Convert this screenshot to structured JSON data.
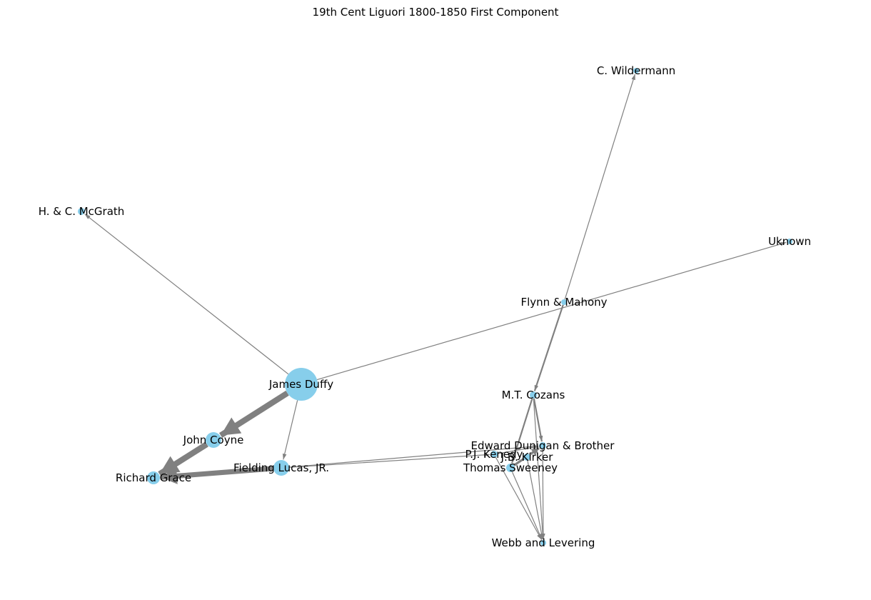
{
  "title": "19th Cent Liguori 1800-1850 First Component",
  "colors": {
    "node": "#87ceeb",
    "edge": "#808080",
    "label": "#000000",
    "background": "#ffffff"
  },
  "nodes": [
    {
      "id": "james-duffy",
      "label": "James Duffy"
    },
    {
      "id": "h-c-mcgrath",
      "label": "H. & C. McGrath"
    },
    {
      "id": "john-coyne",
      "label": "John Coyne"
    },
    {
      "id": "richard-grace",
      "label": "Richard Grace"
    },
    {
      "id": "fielding-lucas",
      "label": "Fielding Lucas, JR."
    },
    {
      "id": "c-wildermann",
      "label": "C. Wildermann"
    },
    {
      "id": "uknown",
      "label": "Uknown"
    },
    {
      "id": "flynn-mahony",
      "label": "Flynn & Mahony"
    },
    {
      "id": "mt-cozans",
      "label": "M.T. Cozans"
    },
    {
      "id": "edward-dunigan",
      "label": "Edward Dunigan & Brother"
    },
    {
      "id": "pj-kenedy",
      "label": "P.J. Kenedy"
    },
    {
      "id": "jb-kirker",
      "label": "J.B. Kirker"
    },
    {
      "id": "thomas-sweeney",
      "label": "Thomas Sweeney"
    },
    {
      "id": "webb-levering",
      "label": "Webb and Levering"
    }
  ],
  "edges": [
    {
      "source": "james-duffy",
      "target": "h-c-mcgrath",
      "weight": 1
    },
    {
      "source": "james-duffy",
      "target": "uknown",
      "weight": 1
    },
    {
      "source": "james-duffy",
      "target": "fielding-lucas",
      "weight": 1
    },
    {
      "source": "james-duffy",
      "target": "john-coyne",
      "weight": 8
    },
    {
      "source": "john-coyne",
      "target": "richard-grace",
      "weight": 8
    },
    {
      "source": "fielding-lucas",
      "target": "richard-grace",
      "weight": 7
    },
    {
      "source": "fielding-lucas",
      "target": "pj-kenedy",
      "weight": 1
    },
    {
      "source": "fielding-lucas",
      "target": "edward-dunigan",
      "weight": 1
    },
    {
      "source": "flynn-mahony",
      "target": "c-wildermann",
      "weight": 1
    },
    {
      "source": "flynn-mahony",
      "target": "mt-cozans",
      "weight": 2
    },
    {
      "source": "mt-cozans",
      "target": "edward-dunigan",
      "weight": 2
    },
    {
      "source": "mt-cozans",
      "target": "thomas-sweeney",
      "weight": 2
    },
    {
      "source": "thomas-sweeney",
      "target": "edward-dunigan",
      "weight": 3
    },
    {
      "source": "pj-kenedy",
      "target": "edward-dunigan",
      "weight": 1
    },
    {
      "source": "pj-kenedy",
      "target": "webb-levering",
      "weight": 1
    },
    {
      "source": "thomas-sweeney",
      "target": "webb-levering",
      "weight": 1
    },
    {
      "source": "jb-kirker",
      "target": "webb-levering",
      "weight": 1
    },
    {
      "source": "edward-dunigan",
      "target": "webb-levering",
      "weight": 1
    },
    {
      "source": "mt-cozans",
      "target": "webb-levering",
      "weight": 1
    }
  ]
}
